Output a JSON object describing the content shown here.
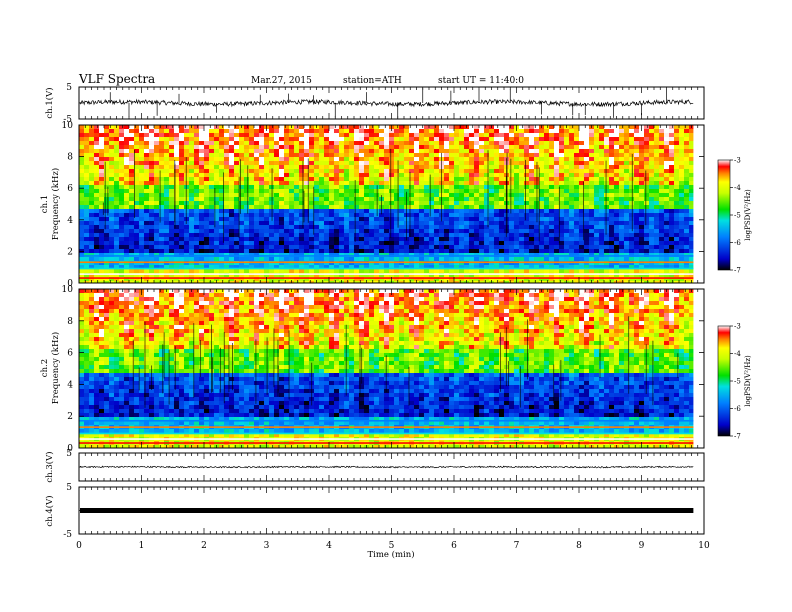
{
  "header": {
    "title": "VLF Spectra",
    "date": "Mar.27, 2015",
    "station": "station=ATH",
    "start": "start  UT =   11:40:0"
  },
  "chart_data": [
    {
      "type": "line",
      "name": "ch1-waveform",
      "ylabel": "ch.1(V)",
      "xlim": [
        0,
        10
      ],
      "ylim": [
        -5,
        5
      ],
      "yticks": [
        {
          "v": 5,
          "label": "5"
        },
        {
          "v": -5,
          "label": "-5"
        }
      ],
      "baseline": 0,
      "data_end_min": 9.83,
      "spikes_min": [
        0.5,
        0.8,
        1.25,
        1.6,
        2.2,
        2.9,
        3.35,
        3.75,
        4.1,
        4.6,
        5.1,
        5.5,
        5.95,
        6.4,
        6.9,
        7.4,
        7.9,
        8.1,
        8.55,
        9.0,
        9.4
      ]
    },
    {
      "type": "heatmap",
      "name": "ch1-spectrogram",
      "ylabel": "ch.1\nFrequency (kHz)",
      "ylabel_lines": [
        "ch.1",
        "Frequency (kHz)"
      ],
      "xlim": [
        0,
        10
      ],
      "ylim": [
        0,
        10
      ],
      "yticks": [
        0,
        2,
        4,
        6,
        8,
        10
      ],
      "data_end_min": 9.83,
      "colorbar": {
        "label": "logPSD(V²/Hz)",
        "ticks": [
          -3,
          -4,
          -5,
          -6,
          -7
        ],
        "range": [
          -7,
          -3
        ]
      },
      "intense_bursts_min": [
        0.3,
        0.75,
        1.1,
        1.55,
        1.95,
        2.4,
        2.85,
        3.2,
        3.6,
        4.05,
        4.5,
        4.9,
        5.35,
        5.8,
        6.3,
        6.75,
        7.2,
        7.6,
        8.05,
        8.5,
        8.95,
        9.4
      ]
    },
    {
      "type": "heatmap",
      "name": "ch2-spectrogram",
      "ylabel": "ch.2\nFrequency (kHz)",
      "ylabel_lines": [
        "ch.2",
        "Frequency (kHz)"
      ],
      "xlim": [
        0,
        10
      ],
      "ylim": [
        0,
        10
      ],
      "yticks": [
        0,
        2,
        4,
        6,
        8,
        10
      ],
      "data_end_min": 9.83,
      "colorbar": {
        "label": "logPSD(V²/Hz)",
        "ticks": [
          -3,
          -4,
          -5,
          -6,
          -7
        ],
        "range": [
          -7,
          -3
        ]
      },
      "intense_bursts_min": [
        0.3,
        0.75,
        1.1,
        1.55,
        1.95,
        2.4,
        2.85,
        3.2,
        3.6,
        4.05,
        4.5,
        4.9,
        5.35,
        5.8,
        6.3,
        6.75,
        7.2,
        7.6,
        8.05,
        8.5,
        8.95,
        9.4
      ]
    },
    {
      "type": "line",
      "name": "ch3-waveform",
      "ylabel": "ch.3(V)",
      "xlim": [
        0,
        10
      ],
      "ylim": [
        -5,
        5
      ],
      "yticks": [
        {
          "v": 5,
          "label": "5"
        }
      ],
      "baseline": 0,
      "data_end_min": 9.83
    },
    {
      "type": "line",
      "name": "ch4-waveform",
      "ylabel": "ch.4(V)",
      "xlim": [
        0,
        10
      ],
      "ylim": [
        -5,
        5
      ],
      "yticks": [
        {
          "v": 5,
          "label": "5"
        },
        {
          "v": -5,
          "label": "-5"
        }
      ],
      "baseline": 0,
      "data_end_min": 9.83
    }
  ],
  "xaxis": {
    "label": "Time (min)",
    "ticks": [
      "0",
      "1",
      "2",
      "3",
      "4",
      "5",
      "6",
      "7",
      "8",
      "9",
      "10"
    ]
  }
}
